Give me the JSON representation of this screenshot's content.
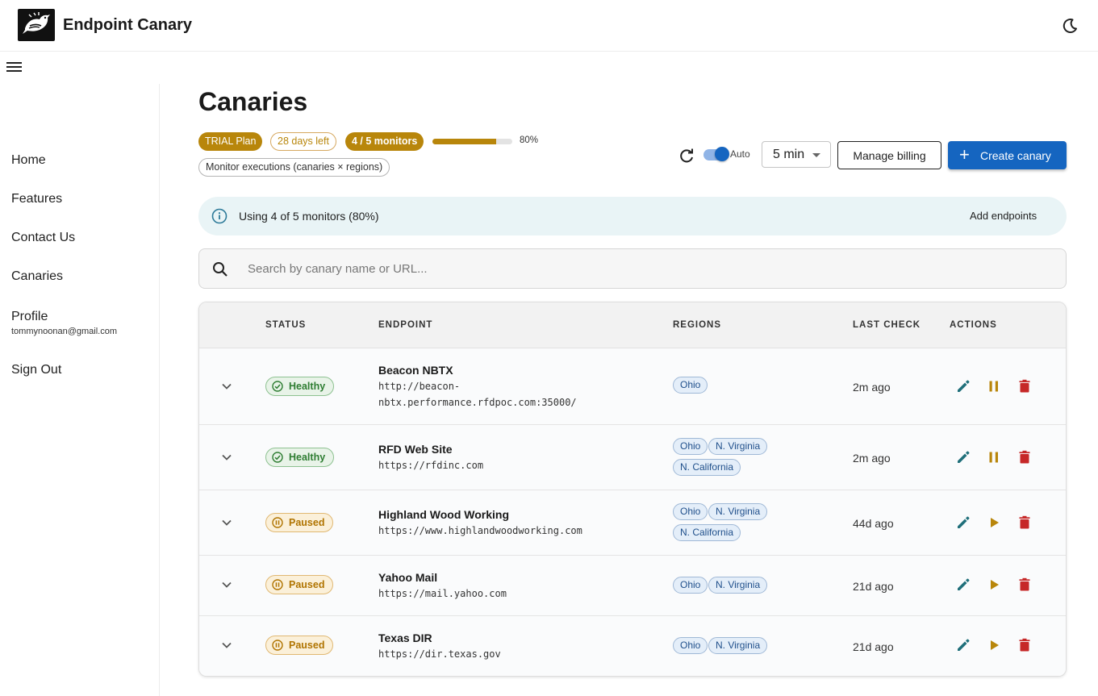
{
  "app": {
    "title": "Endpoint Canary"
  },
  "sidebar": {
    "items": [
      {
        "label": "Home"
      },
      {
        "label": "Features"
      },
      {
        "label": "Contact Us"
      },
      {
        "label": "Canaries"
      },
      {
        "label": "Profile"
      },
      {
        "label": "Sign Out"
      }
    ],
    "email": "tommynoonan@gmail.com"
  },
  "page": {
    "title": "Canaries"
  },
  "plan": {
    "trial": "TRIAL Plan",
    "days_left": "28 days left",
    "monitors": "4 / 5 monitors",
    "usage_percent": 80,
    "usage_label": "80%",
    "executions": "Monitor executions (canaries × regions)"
  },
  "toolbar": {
    "auto_label": "Auto",
    "auto_enabled": true,
    "interval": "5 min",
    "billing_label": "Manage billing",
    "create_label": "Create canary"
  },
  "alert": {
    "text": "Using 4 of 5 monitors (80%)",
    "action": "Add endpoints"
  },
  "search": {
    "placeholder": "Search by canary name or URL..."
  },
  "table": {
    "headers": {
      "status": "STATUS",
      "endpoint": "ENDPOINT",
      "regions": "REGIONS",
      "last_check": "LAST CHECK",
      "actions": "ACTIONS"
    },
    "rows": [
      {
        "status": "Healthy",
        "name": "Beacon NBTX",
        "url1": "http://beacon-",
        "url2": "nbtx.performance.rfdpoc.com:35000/",
        "regions": [
          "Ohio"
        ],
        "last_check": "2m ago"
      },
      {
        "status": "Healthy",
        "name": "RFD Web Site",
        "url1": "https://rfdinc.com",
        "url2": "",
        "regions": [
          "Ohio",
          "N. Virginia",
          "N. California"
        ],
        "last_check": "2m ago"
      },
      {
        "status": "Paused",
        "name": "Highland Wood Working",
        "url1": "https://www.highlandwoodworking.com",
        "url2": "",
        "regions": [
          "Ohio",
          "N. Virginia",
          "N. California"
        ],
        "last_check": "44d ago"
      },
      {
        "status": "Paused",
        "name": "Yahoo Mail",
        "url1": "https://mail.yahoo.com",
        "url2": "",
        "regions": [
          "Ohio",
          "N. Virginia"
        ],
        "last_check": "21d ago"
      },
      {
        "status": "Paused",
        "name": "Texas DIR",
        "url1": "https://dir.texas.gov",
        "url2": "",
        "regions": [
          "Ohio",
          "N. Virginia"
        ],
        "last_check": "21d ago"
      }
    ]
  },
  "colors": {
    "primary": "#1565c0",
    "accent_gold": "#b8860b",
    "healthy": "#2e7d32",
    "paused": "#b07400",
    "edit": "#1f6f7a",
    "delete": "#c62828"
  },
  "icons": {
    "logo": "bird-logo-icon",
    "theme": "moon-icon",
    "menu": "hamburger-icon",
    "refresh": "refresh-icon",
    "search": "search-icon",
    "info": "info-icon",
    "expand": "chevron-down-icon",
    "edit": "pencil-icon",
    "pause": "pause-icon",
    "play": "play-icon",
    "delete": "trash-icon"
  }
}
